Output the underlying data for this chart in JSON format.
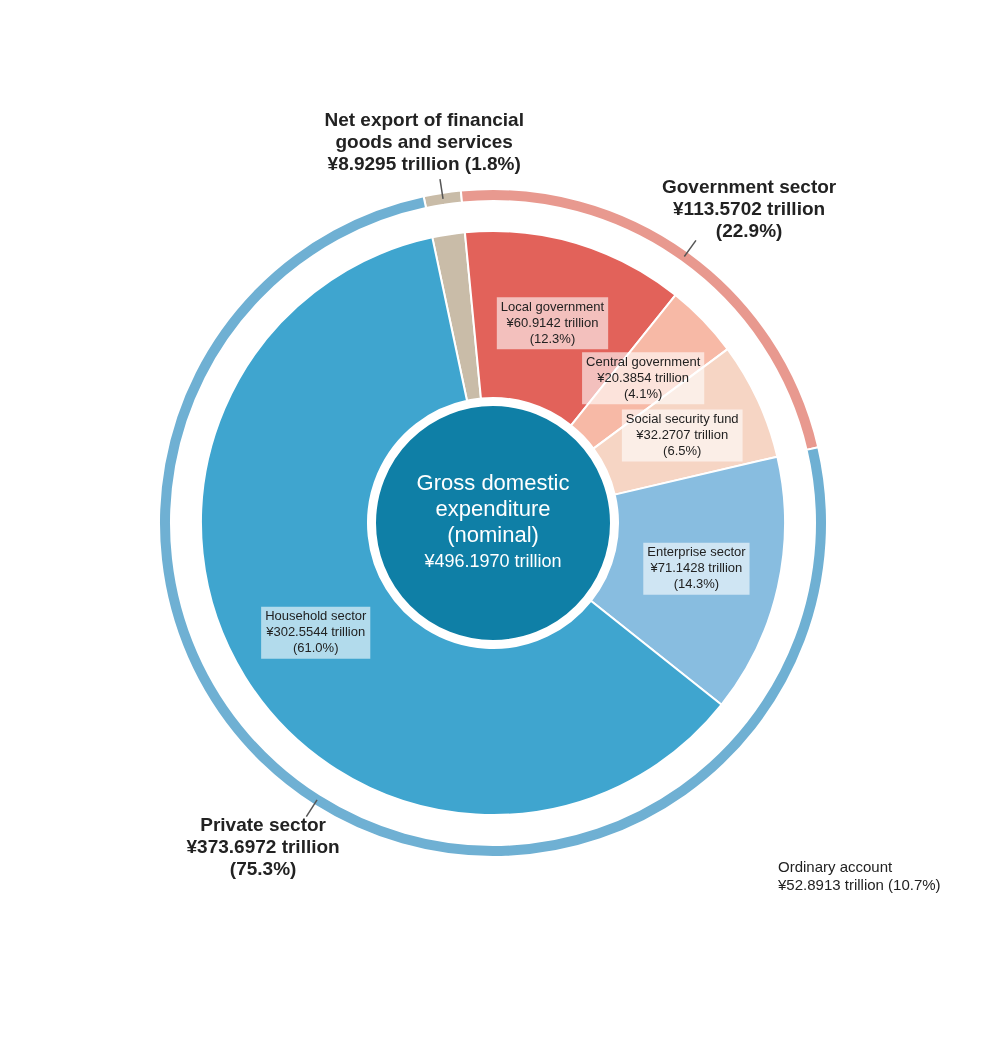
{
  "chart_data": [
    {
      "type": "donut",
      "categories": [
        "Net export of financial goods and services",
        "Government sector",
        "Private sector"
      ],
      "values": [
        8.9295,
        113.5702,
        373.6972
      ],
      "colors": [
        "#c9bca8",
        "#e8998f",
        "#6fb0d3"
      ],
      "value_labels": [
        "¥8.9295 trillion (1.8%)",
        "¥113.5702 trillion (22.9%)",
        "¥373.6972 trillion (75.3%)"
      ],
      "legend": false
    },
    {
      "type": "donut",
      "title": "Gross domestic expenditure (nominal)",
      "subtitle": "¥496.1970 trillion",
      "categories": [
        null,
        "Local government",
        "Central government",
        "Social security fund",
        "Enterprise sector",
        "Household sector"
      ],
      "values": [
        8.9295,
        60.9142,
        20.3854,
        32.2707,
        71.1428,
        302.5544
      ],
      "colors": [
        "#c9bca8",
        "#e2625a",
        "#f7b9a6",
        "#f6d5c4",
        "#88bde0",
        "#3fa5cf"
      ],
      "value_labels": [
        null,
        "¥60.9142 trillion (12.3%)",
        "¥20.3854 trillion (4.1%)",
        "¥32.2707 trillion (6.5%)",
        "¥71.1428 trillion (14.3%)",
        "¥302.5544 trillion (61.0%)"
      ],
      "annotations": [
        "Ordinary account ¥52.8913 trillion (10.7%)"
      ],
      "legend": false
    }
  ]
}
